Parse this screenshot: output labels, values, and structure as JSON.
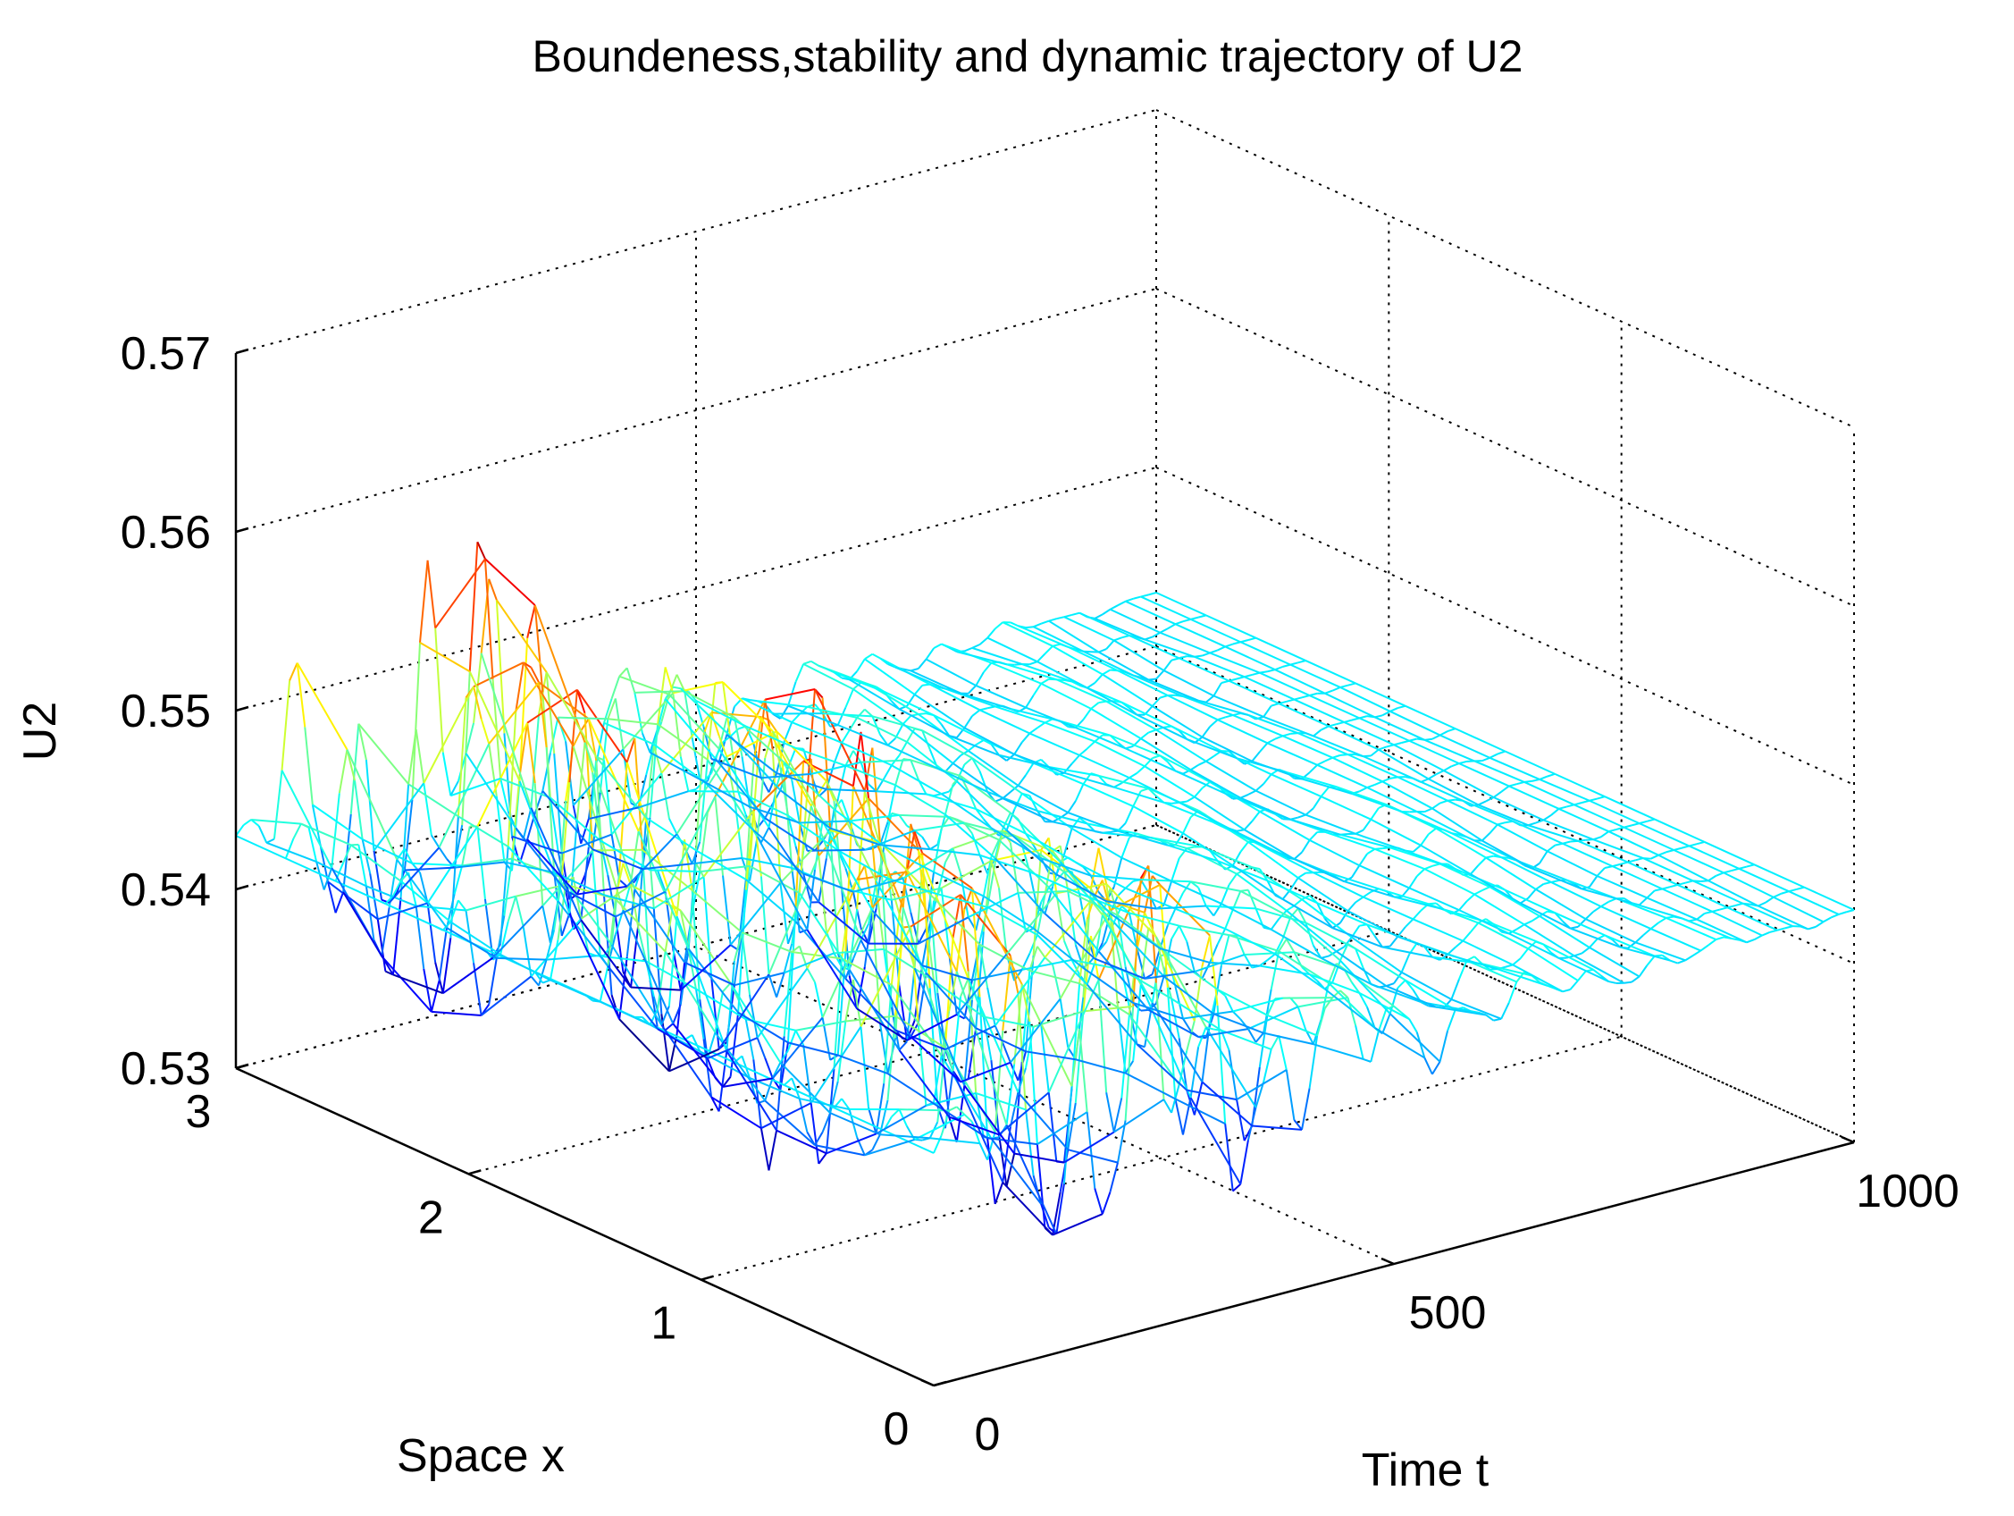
{
  "chart_data": {
    "type": "surface",
    "title": "Boundeness,stability and dynamic trajectory of U2",
    "xlabel": "Time t",
    "ylabel": "Space x",
    "zlabel": "U2",
    "xlim": [
      0,
      1000
    ],
    "ylim": [
      0,
      3
    ],
    "zlim": [
      0.53,
      0.57
    ],
    "xticks": [
      "0",
      "500",
      "1000"
    ],
    "yticks": [
      "0",
      "1",
      "2",
      "3"
    ],
    "zticks": [
      "0.53",
      "0.54",
      "0.55",
      "0.56",
      "0.57"
    ],
    "grid": true,
    "colormap": "jet",
    "steady_state_value": 0.543,
    "series": [
      {
        "x": [
          0,
          50,
          100,
          150,
          200,
          250,
          300,
          350,
          400,
          450,
          500,
          600,
          700,
          800,
          900,
          1000
        ],
        "z_max": [
          0.543,
          0.552,
          0.557,
          0.559,
          0.559,
          0.558,
          0.556,
          0.552,
          0.549,
          0.547,
          0.546,
          0.545,
          0.544,
          0.544,
          0.543,
          0.543
        ],
        "z_min": [
          0.543,
          0.536,
          0.534,
          0.533,
          0.533,
          0.534,
          0.534,
          0.535,
          0.537,
          0.538,
          0.539,
          0.541,
          0.542,
          0.542,
          0.542,
          0.543
        ]
      }
    ]
  }
}
